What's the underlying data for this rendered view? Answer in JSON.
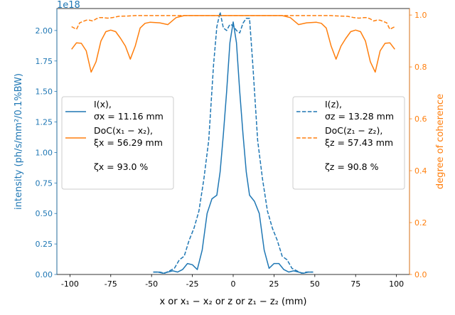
{
  "chart_data": {
    "type": "line",
    "title": "",
    "xlabel": "x or x₁ − x₂ or z or z₁ − z₂ (mm)",
    "ylabel_left": "intensity (ph/s/mm²/0.1%BW)",
    "ylabel_right": "degree of coherence",
    "left_axis_multiplier": "1e18",
    "xlim": [
      -108,
      108
    ],
    "ylim_left": [
      0,
      2.18
    ],
    "ylim_right": [
      0,
      1.025
    ],
    "x_ticks": [
      -100,
      -75,
      -50,
      -25,
      0,
      25,
      50,
      75,
      100
    ],
    "x_tick_labels": [
      "-100",
      "-75",
      "-50",
      "-25",
      "0",
      "25",
      "50",
      "75",
      "100"
    ],
    "y_left_ticks": [
      0,
      0.25,
      0.5,
      0.75,
      1.0,
      1.25,
      1.5,
      1.75,
      2.0
    ],
    "y_left_tick_labels": [
      "0.00",
      "0.25",
      "0.50",
      "0.75",
      "1.00",
      "1.25",
      "1.50",
      "1.75",
      "2.00"
    ],
    "y_right_ticks": [
      0,
      0.2,
      0.4,
      0.6,
      0.8,
      1.0
    ],
    "y_right_tick_labels": [
      "0.0",
      "0.2",
      "0.4",
      "0.6",
      "0.8",
      "1.0"
    ],
    "grid": false,
    "colors": {
      "intensity": "#1f77b4",
      "coherence": "#ff7f0e",
      "axis": "#000000"
    },
    "series": [
      {
        "axis": "left",
        "color": "#1f77b4",
        "style": "solid",
        "x": [
          -49,
          -46,
          -43,
          -40,
          -37,
          -34,
          -31,
          -28,
          -25,
          -22,
          -19,
          -16,
          -13,
          -10,
          -8,
          -6,
          -4,
          -2,
          0,
          2,
          4,
          6,
          8,
          10,
          13,
          16,
          19,
          22,
          25,
          28,
          31,
          34,
          37,
          40,
          43,
          46,
          49
        ],
        "y": [
          0.02,
          0.02,
          0.01,
          0.02,
          0.03,
          0.02,
          0.04,
          0.09,
          0.08,
          0.04,
          0.2,
          0.5,
          0.62,
          0.65,
          0.84,
          1.15,
          1.5,
          1.9,
          2.07,
          1.9,
          1.5,
          1.15,
          0.84,
          0.65,
          0.6,
          0.5,
          0.2,
          0.05,
          0.09,
          0.09,
          0.04,
          0.02,
          0.03,
          0.02,
          0.01,
          0.02,
          0.02
        ]
      },
      {
        "axis": "right",
        "color": "#ff7f0e",
        "style": "solid",
        "x": [
          -99,
          -96,
          -93,
          -90,
          -87,
          -84,
          -81,
          -78,
          -75,
          -72,
          -69,
          -66,
          -63,
          -60,
          -57,
          -54,
          -51,
          -45,
          -40,
          -35,
          -30,
          -20,
          -10,
          0,
          10,
          20,
          30,
          35,
          40,
          45,
          51,
          54,
          57,
          60,
          63,
          66,
          69,
          72,
          75,
          78,
          81,
          84,
          87,
          90,
          93,
          96,
          99
        ],
        "y": [
          0.868,
          0.893,
          0.891,
          0.862,
          0.78,
          0.82,
          0.9,
          0.936,
          0.942,
          0.936,
          0.91,
          0.88,
          0.83,
          0.88,
          0.95,
          0.968,
          0.972,
          0.97,
          0.963,
          0.99,
          0.998,
          0.998,
          0.998,
          0.998,
          0.998,
          0.998,
          0.998,
          0.99,
          0.963,
          0.97,
          0.972,
          0.968,
          0.95,
          0.88,
          0.83,
          0.88,
          0.91,
          0.936,
          0.942,
          0.936,
          0.9,
          0.82,
          0.78,
          0.862,
          0.891,
          0.893,
          0.868
        ]
      },
      {
        "axis": "left",
        "color": "#1f77b4",
        "style": "dashed",
        "x": [
          -49,
          -45,
          -42,
          -39,
          -36,
          -33,
          -30,
          -27,
          -24,
          -21,
          -18,
          -15,
          -12,
          -10,
          -8,
          -6,
          -4,
          -2,
          0,
          2,
          4,
          6,
          8,
          10,
          12,
          15,
          18,
          21,
          24,
          27,
          30,
          33,
          36,
          39,
          42,
          45,
          49
        ],
        "y": [
          0.02,
          0.02,
          0.01,
          0.03,
          0.05,
          0.12,
          0.15,
          0.28,
          0.38,
          0.52,
          0.78,
          1.1,
          1.72,
          2.03,
          2.15,
          2.02,
          2.0,
          2.05,
          2.04,
          2.0,
          1.98,
          2.06,
          2.1,
          2.1,
          1.72,
          1.1,
          0.78,
          0.52,
          0.38,
          0.28,
          0.15,
          0.12,
          0.05,
          0.03,
          0.01,
          0.02,
          0.02
        ]
      },
      {
        "axis": "right",
        "color": "#ff7f0e",
        "style": "dashed",
        "x": [
          -99,
          -96,
          -94,
          -92,
          -90,
          -88,
          -86,
          -84,
          -82,
          -80,
          -77,
          -74,
          -70,
          -65,
          -60,
          -50,
          -40,
          -30,
          -20,
          -10,
          0,
          10,
          20,
          30,
          40,
          50,
          60,
          65,
          70,
          74,
          77,
          80,
          82,
          84,
          86,
          88,
          90,
          92,
          94,
          96,
          99
        ],
        "y": [
          0.955,
          0.945,
          0.97,
          0.975,
          0.98,
          0.98,
          0.977,
          0.985,
          0.99,
          0.99,
          0.988,
          0.99,
          0.995,
          0.996,
          0.998,
          0.998,
          0.998,
          0.998,
          0.998,
          0.998,
          0.998,
          0.998,
          0.998,
          0.998,
          0.998,
          0.998,
          0.998,
          0.996,
          0.995,
          0.99,
          0.988,
          0.99,
          0.99,
          0.985,
          0.977,
          0.98,
          0.98,
          0.975,
          0.97,
          0.945,
          0.955
        ]
      }
    ],
    "legend_left": {
      "placement": "center-left",
      "entries": [
        {
          "style": "solid",
          "color": "#1f77b4",
          "lines": [
            "I(x),",
            "σx = 11.16 mm"
          ]
        },
        {
          "style": "solid",
          "color": "#ff7f0e",
          "lines": [
            "DoC(x₁ − x₂),",
            "ξx = 56.29 mm",
            "",
            "ζx = 93.0 %"
          ]
        }
      ]
    },
    "legend_right": {
      "placement": "center-right",
      "entries": [
        {
          "style": "dashed",
          "color": "#1f77b4",
          "lines": [
            "I(z),",
            "σz = 13.28 mm"
          ]
        },
        {
          "style": "dashed",
          "color": "#ff7f0e",
          "lines": [
            "DoC(z₁ − z₂),",
            "ξz = 57.43 mm",
            "",
            "ζz = 90.8 %"
          ]
        }
      ]
    }
  }
}
